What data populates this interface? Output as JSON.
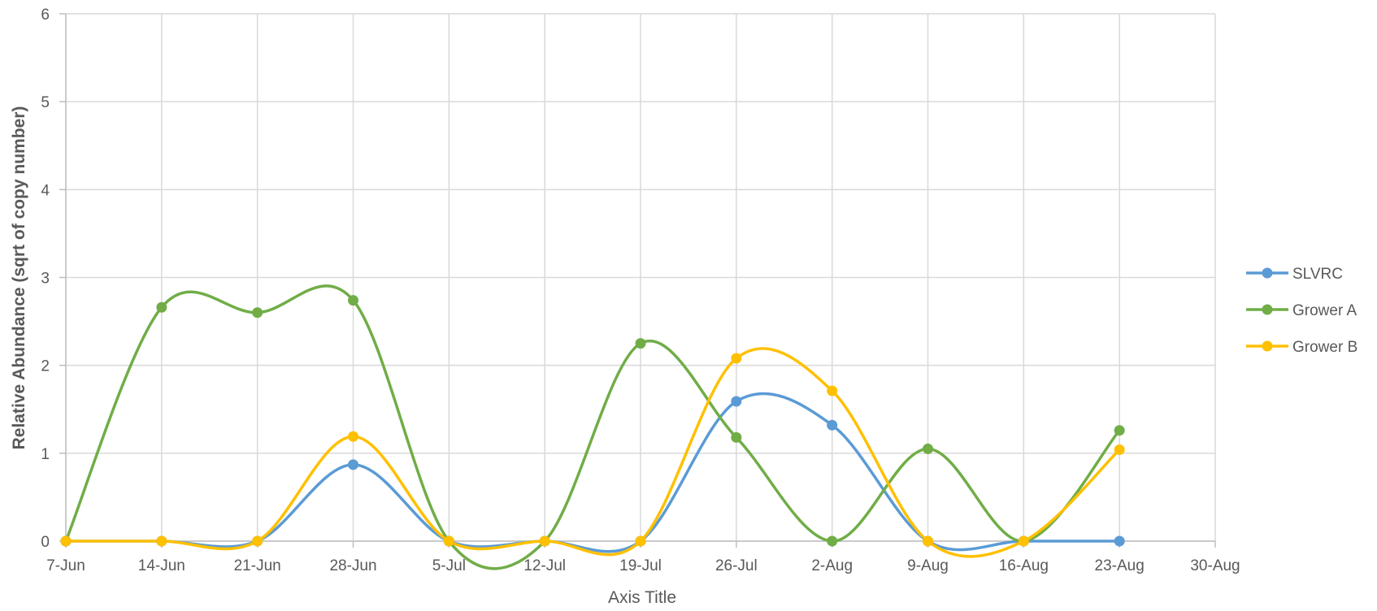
{
  "chart_data": {
    "type": "line",
    "title": "",
    "xlabel": "Axis Title",
    "ylabel": "Relative Abundance (sqrt of copy number)",
    "x_ticks": [
      "7-Jun",
      "14-Jun",
      "21-Jun",
      "28-Jun",
      "5-Jul",
      "12-Jul",
      "19-Jul",
      "26-Jul",
      "2-Aug",
      "9-Aug",
      "16-Aug",
      "23-Aug",
      "30-Aug"
    ],
    "y_ticks": [
      "0",
      "1",
      "2",
      "3",
      "4",
      "5",
      "6"
    ],
    "ylim": [
      0,
      6
    ],
    "grid": true,
    "smooth": true,
    "legend_position": "right",
    "series": [
      {
        "name": "SLVRC",
        "color": "#5b9bd5",
        "x": [
          "7-Jun",
          "14-Jun",
          "21-Jun",
          "28-Jun",
          "5-Jul",
          "12-Jul",
          "19-Jul",
          "26-Jul",
          "2-Aug",
          "9-Aug",
          "16-Aug",
          "23-Aug"
        ],
        "values": [
          0,
          0,
          0,
          0.87,
          0,
          0,
          0,
          1.59,
          1.32,
          0,
          0,
          0
        ]
      },
      {
        "name": "Grower A",
        "color": "#70ad47",
        "x": [
          "7-Jun",
          "14-Jun",
          "21-Jun",
          "28-Jun",
          "5-Jul",
          "12-Jul",
          "19-Jul",
          "26-Jul",
          "2-Aug",
          "9-Aug",
          "16-Aug",
          "23-Aug"
        ],
        "values": [
          0,
          2.66,
          2.6,
          2.74,
          0,
          0,
          2.25,
          1.18,
          0,
          1.05,
          0,
          1.26
        ]
      },
      {
        "name": "Grower B",
        "color": "#ffc000",
        "x": [
          "7-Jun",
          "14-Jun",
          "21-Jun",
          "28-Jun",
          "5-Jul",
          "12-Jul",
          "19-Jul",
          "26-Jul",
          "2-Aug",
          "9-Aug",
          "16-Aug",
          "23-Aug"
        ],
        "values": [
          0,
          0,
          0,
          1.19,
          0,
          0,
          0,
          2.08,
          1.71,
          0,
          0,
          1.04
        ]
      }
    ]
  }
}
